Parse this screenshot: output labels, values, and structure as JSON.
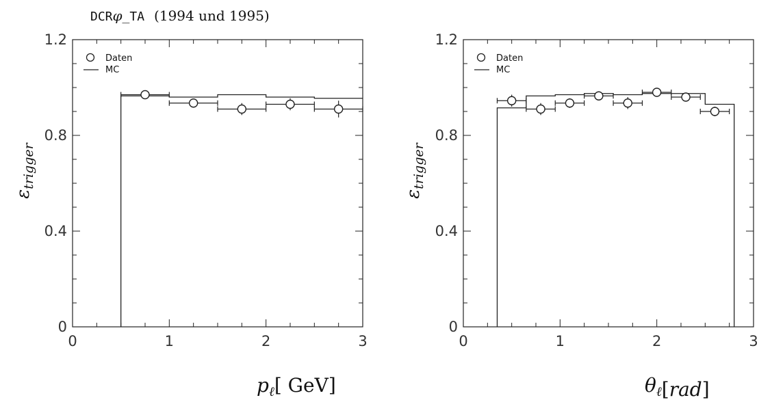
{
  "title": {
    "prefix": "DCR",
    "symbol": "φ",
    "suffix": "_TA",
    "years": "(1994 und 1995)"
  },
  "chart_data": [
    {
      "type": "line",
      "ylabel": "ε",
      "ylabel_sub": "trigger",
      "xlabel_var": "p",
      "xlabel_sub": "ℓ",
      "xlabel_unit": "[ GeV]",
      "xlim": [
        0,
        3
      ],
      "ylim": [
        0,
        1.2
      ],
      "xticks": [
        "0",
        "1",
        "2",
        "3"
      ],
      "yticks": [
        "0",
        "0.4",
        "0.8",
        "1.2"
      ],
      "legend": {
        "placement": "top-left",
        "entries": [
          "Daten",
          "MC"
        ]
      },
      "series": [
        {
          "name": "Daten",
          "x": [
            0.75,
            1.25,
            1.75,
            2.25,
            2.75
          ],
          "y": [
            0.97,
            0.935,
            0.91,
            0.93,
            0.91
          ],
          "xerr": [
            0.25,
            0.25,
            0.25,
            0.25,
            0.25
          ],
          "yerr": [
            0.012,
            0.015,
            0.025,
            0.025,
            0.035
          ]
        },
        {
          "name": "MC",
          "edges": [
            0.5,
            1.0,
            1.5,
            2.0,
            2.5,
            3.0
          ],
          "values": [
            0.965,
            0.96,
            0.97,
            0.96,
            0.955
          ]
        }
      ]
    },
    {
      "type": "line",
      "ylabel": "ε",
      "ylabel_sub": "trigger",
      "xlabel_var": "θ",
      "xlabel_sub": "ℓ",
      "xlabel_unit": "rad",
      "xlim": [
        0,
        3
      ],
      "ylim": [
        0,
        1.2
      ],
      "xticks": [
        "0",
        "1",
        "2",
        "3"
      ],
      "yticks": [
        "0",
        "0.4",
        "0.8",
        "1.2"
      ],
      "legend": {
        "placement": "top-left",
        "entries": [
          "Daten",
          "MC"
        ]
      },
      "series": [
        {
          "name": "Daten",
          "x": [
            0.5,
            0.8,
            1.1,
            1.4,
            1.7,
            2.0,
            2.3,
            2.6
          ],
          "y": [
            0.945,
            0.91,
            0.935,
            0.965,
            0.935,
            0.98,
            0.96,
            0.9
          ],
          "xerr": [
            0.15,
            0.15,
            0.15,
            0.15,
            0.15,
            0.15,
            0.15,
            0.15
          ],
          "yerr": [
            0.025,
            0.025,
            0.02,
            0.012,
            0.025,
            0.01,
            0.012,
            0.02
          ]
        },
        {
          "name": "MC",
          "edges": [
            0.35,
            0.65,
            0.95,
            1.25,
            1.55,
            1.85,
            2.15,
            2.5,
            2.8
          ],
          "values": [
            0.915,
            0.965,
            0.97,
            0.975,
            0.97,
            0.975,
            0.975,
            0.93
          ]
        }
      ]
    }
  ]
}
